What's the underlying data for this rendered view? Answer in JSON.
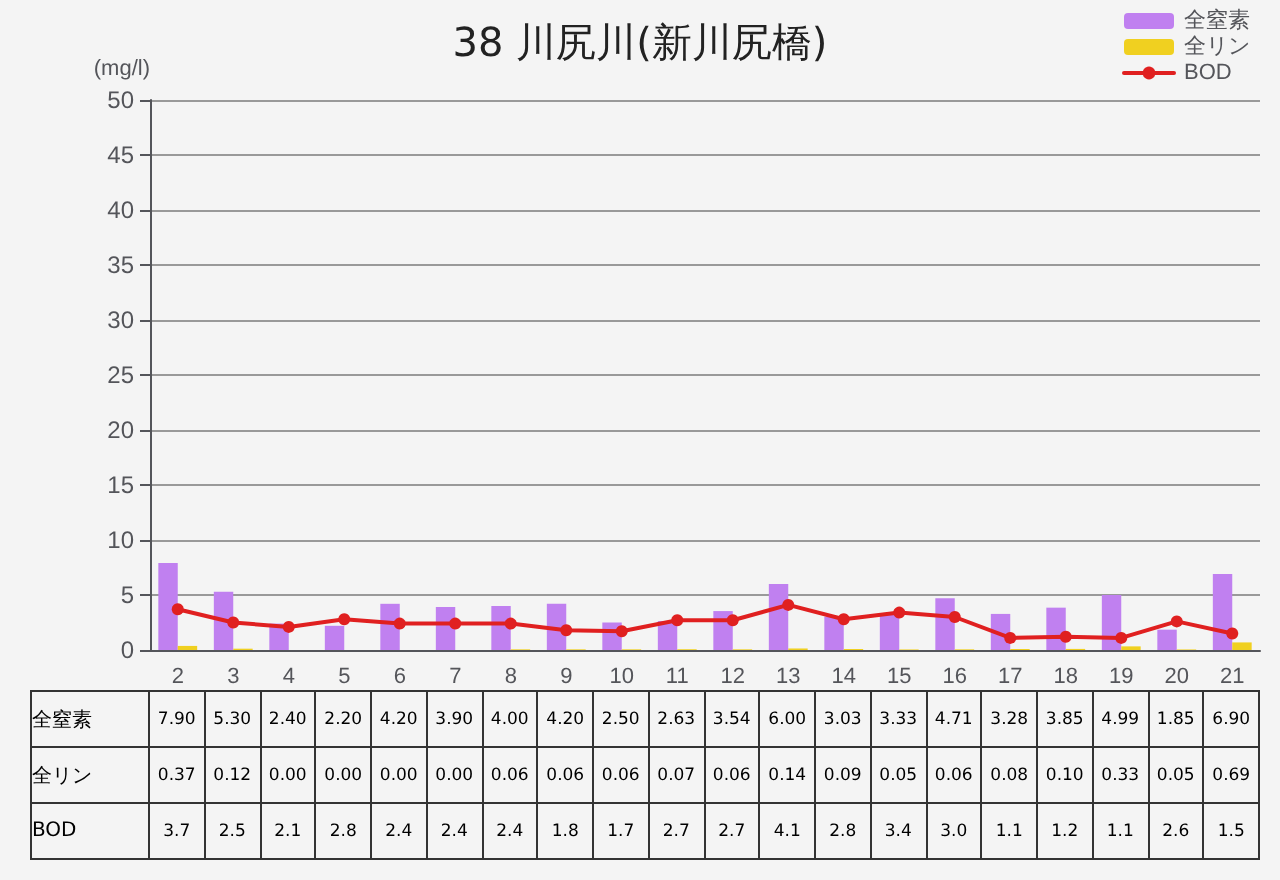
{
  "chart_data": {
    "type": "bar",
    "title": "38 川尻川(新川尻橋)",
    "ylabel": "(mg/l)",
    "categories": [
      "2",
      "3",
      "4",
      "5",
      "6",
      "7",
      "8",
      "9",
      "10",
      "11",
      "12",
      "13",
      "14",
      "15",
      "16",
      "17",
      "18",
      "19",
      "20",
      "21"
    ],
    "series": [
      {
        "name": "全窒素",
        "color": "#c080f0",
        "values": [
          7.9,
          5.3,
          2.4,
          2.2,
          4.2,
          3.9,
          4.0,
          4.2,
          2.5,
          2.63,
          3.54,
          6.0,
          3.03,
          3.33,
          4.71,
          3.28,
          3.85,
          4.99,
          1.85,
          6.9
        ],
        "value_labels": [
          "7.90",
          "5.30",
          "2.40",
          "2.20",
          "4.20",
          "3.90",
          "4.00",
          "4.20",
          "2.50",
          "2.63",
          "3.54",
          "6.00",
          "3.03",
          "3.33",
          "4.71",
          "3.28",
          "3.85",
          "4.99",
          "1.85",
          "6.90"
        ]
      },
      {
        "name": "全リン",
        "color": "#f0d020",
        "values": [
          0.37,
          0.12,
          0.0,
          0.0,
          0.0,
          0.0,
          0.06,
          0.06,
          0.06,
          0.07,
          0.06,
          0.14,
          0.09,
          0.05,
          0.06,
          0.08,
          0.1,
          0.33,
          0.05,
          0.69
        ],
        "value_labels": [
          "0.37",
          "0.12",
          "0.00",
          "0.00",
          "0.00",
          "0.00",
          "0.06",
          "0.06",
          "0.06",
          "0.07",
          "0.06",
          "0.14",
          "0.09",
          "0.05",
          "0.06",
          "0.08",
          "0.10",
          "0.33",
          "0.05",
          "0.69"
        ]
      },
      {
        "name": "BOD",
        "type": "line",
        "color": "#e02020",
        "values": [
          3.7,
          2.5,
          2.1,
          2.8,
          2.4,
          2.4,
          2.4,
          1.8,
          1.7,
          2.7,
          2.7,
          4.1,
          2.8,
          3.4,
          3.0,
          1.1,
          1.2,
          1.1,
          2.6,
          1.5
        ],
        "value_labels": [
          "3.7",
          "2.5",
          "2.1",
          "2.8",
          "2.4",
          "2.4",
          "2.4",
          "1.8",
          "1.7",
          "2.7",
          "2.7",
          "4.1",
          "2.8",
          "3.4",
          "3.0",
          "1.1",
          "1.2",
          "1.1",
          "2.6",
          "1.5"
        ]
      }
    ],
    "ylim": [
      0,
      50
    ],
    "yticks": [
      0,
      5,
      10,
      15,
      20,
      25,
      30,
      35,
      40,
      45,
      50
    ],
    "grid": "y",
    "legend": "top right",
    "marker": "circle",
    "line_style": "solid"
  }
}
